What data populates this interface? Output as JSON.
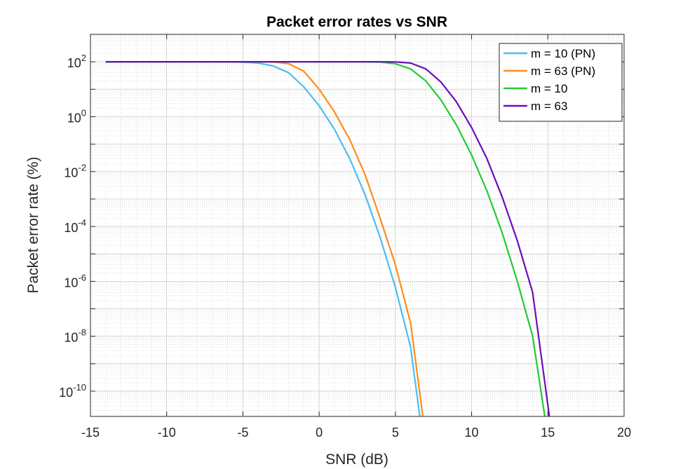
{
  "chart_data": {
    "type": "line",
    "title": "Packet error rates vs SNR",
    "xlabel": "SNR (dB)",
    "ylabel": "Packet error rate (%)",
    "xlim": [
      -15,
      20
    ],
    "ylim": [
      1.2e-11,
      1000
    ],
    "y_scale": "log",
    "grid": "on (major and minor)",
    "legend_position": "top-right",
    "x_ticks": [
      -15,
      -10,
      -5,
      0,
      5,
      10,
      15,
      20
    ],
    "x_tick_labels": [
      "-15",
      "-10",
      "-5",
      "0",
      "5",
      "10",
      "15",
      "20"
    ],
    "y_ticks": [
      {
        "base": "10",
        "exp": "2",
        "value": 100
      },
      {
        "base": "10",
        "exp": "0",
        "value": 1
      },
      {
        "base": "10",
        "exp": "-2",
        "value": 0.01
      },
      {
        "base": "10",
        "exp": "-4",
        "value": 0.0001
      },
      {
        "base": "10",
        "exp": "-6",
        "value": 1e-06
      },
      {
        "base": "10",
        "exp": "-8",
        "value": 1e-08
      },
      {
        "base": "10",
        "exp": "-10",
        "value": 1e-10
      }
    ],
    "series": [
      {
        "name": "m = 10 (PN)",
        "color": "#4DBEEE",
        "x": [
          -14,
          -10,
          -7,
          -5,
          -4,
          -3,
          -2,
          -1,
          0,
          1,
          2,
          3,
          4,
          5,
          6,
          6.6
        ],
        "y": [
          100,
          100,
          100,
          97,
          90,
          70,
          40,
          12,
          2.5,
          0.35,
          0.03,
          0.0015,
          4e-05,
          6e-07,
          4e-09,
          1.2e-11
        ]
      },
      {
        "name": "m = 63 (PN)",
        "color": "#FF8C1A",
        "x": [
          -14,
          -10,
          -7,
          -5,
          -4,
          -3,
          -2,
          -1,
          0,
          1,
          2,
          3,
          4,
          5,
          6,
          6.8
        ],
        "y": [
          100,
          100,
          100,
          100,
          100,
          99,
          85,
          45,
          10,
          1.5,
          0.15,
          0.008,
          0.0002,
          4e-06,
          3e-08,
          1.2e-11
        ]
      },
      {
        "name": "m = 10",
        "color": "#22CC33",
        "x": [
          -14,
          -5,
          0,
          2,
          3,
          4,
          5,
          6,
          7,
          8,
          9,
          10,
          11,
          12,
          13,
          14,
          14.8
        ],
        "y": [
          100,
          100,
          100,
          100,
          100,
          98,
          85,
          55,
          20,
          4,
          0.5,
          0.04,
          0.002,
          6e-05,
          1e-06,
          1e-08,
          1.2e-11
        ]
      },
      {
        "name": "m = 63",
        "color": "#6A0DBB",
        "x": [
          -14,
          -5,
          0,
          4,
          5,
          6,
          7,
          8,
          9,
          10,
          11,
          12,
          13,
          14,
          15.1
        ],
        "y": [
          100,
          100,
          100,
          100,
          99,
          90,
          55,
          18,
          3.5,
          0.4,
          0.03,
          0.0012,
          3e-05,
          4e-07,
          1.2e-11
        ]
      }
    ]
  }
}
